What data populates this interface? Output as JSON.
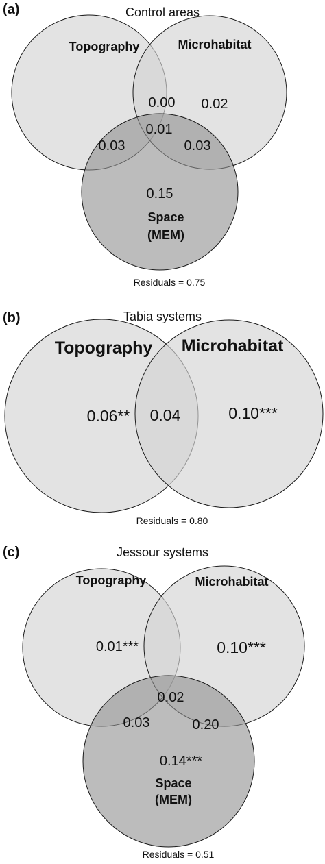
{
  "panels": [
    {
      "letter": "(a)",
      "title": "Control areas",
      "sets": {
        "topography": "Topography",
        "microhabitat": "Microhabitat",
        "space_line1": "Space",
        "space_line2": "(MEM)"
      },
      "values": {
        "topo_micro": "0.00",
        "micro_only": "0.02",
        "all_three": "0.01",
        "topo_space": "0.03",
        "micro_space": "0.03",
        "space_only": "0.15"
      },
      "residuals": "Residuals = 0.75"
    },
    {
      "letter": "(b)",
      "title": "Tabia systems",
      "sets": {
        "topography": "Topography",
        "microhabitat": "Microhabitat"
      },
      "values": {
        "topo_only": "0.06**",
        "topo_micro": "0.04",
        "micro_only": "0.10***"
      },
      "residuals": "Residuals = 0.80"
    },
    {
      "letter": "(c)",
      "title": "Jessour systems",
      "sets": {
        "topography": "Topography",
        "microhabitat": "Microhabitat",
        "space_line1": "Space",
        "space_line2": "(MEM)"
      },
      "values": {
        "topo_only": "0.01***",
        "micro_only": "0.10***",
        "all_three": "0.02",
        "topo_space": "0.03",
        "micro_space": "0.20",
        "space_only": "0.14***"
      },
      "residuals": "Residuals = 0.51"
    }
  ],
  "colors": {
    "topography_fill": "#d9d9d9",
    "microhabitat_fill": "#d4d4d4",
    "space_fill": "#8f8f8f",
    "outline": "#1a1a1a",
    "text": "#111111"
  }
}
